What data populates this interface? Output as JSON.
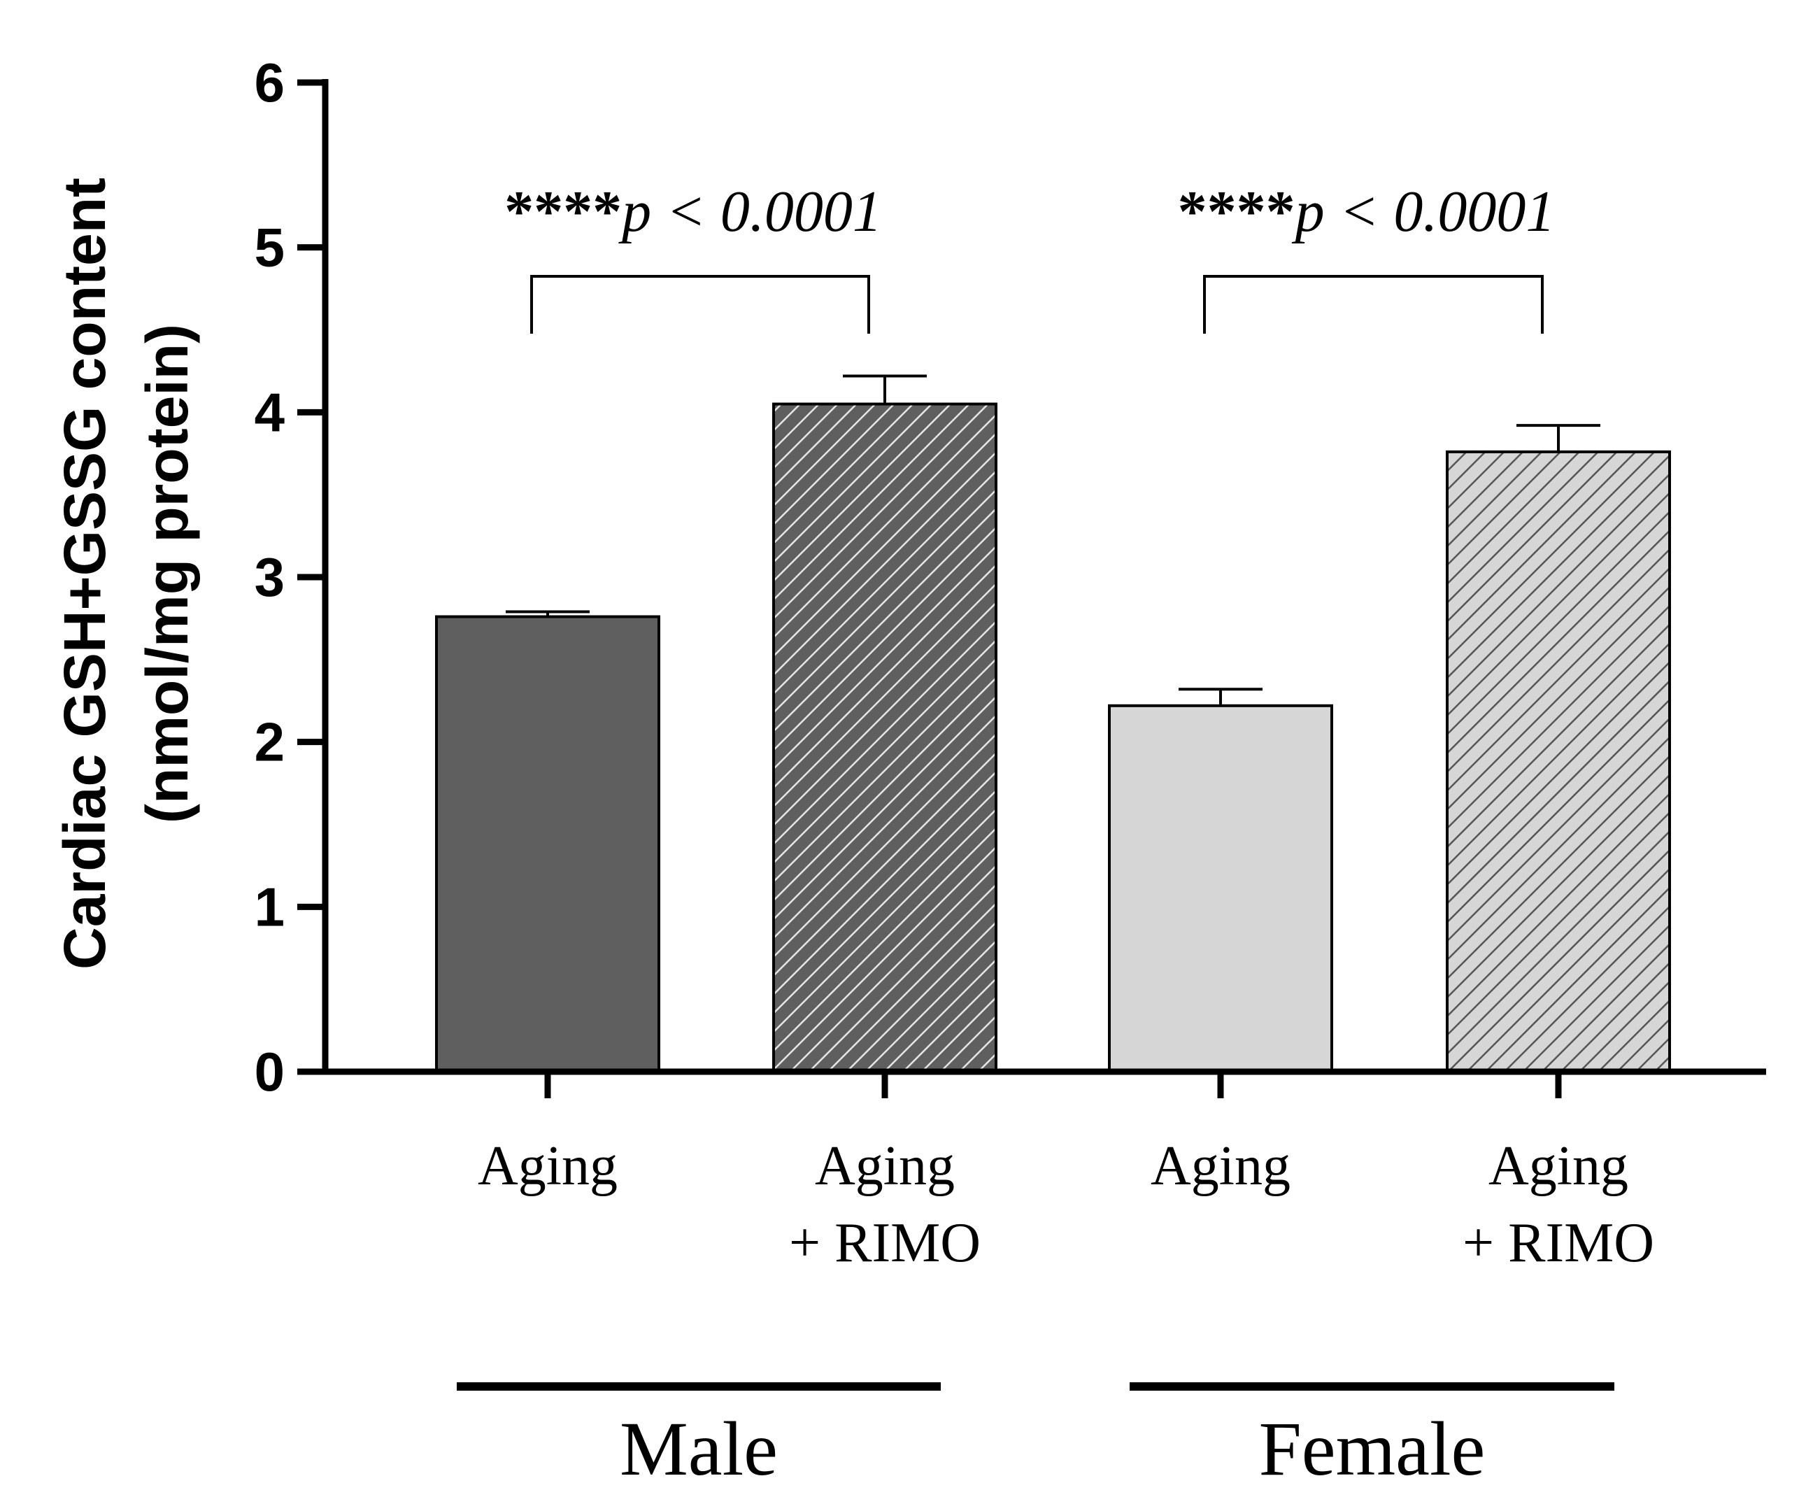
{
  "chart_data": {
    "type": "bar",
    "ylabel_line1": "Cardiac GSH+GSSG content",
    "ylabel_line2": "(nmol/mg protein)",
    "ylim": [
      0,
      6
    ],
    "yticks": [
      "0",
      "1",
      "2",
      "3",
      "4",
      "5",
      "6"
    ],
    "categories": [
      {
        "line1": "Aging",
        "line2": ""
      },
      {
        "line1": "Aging",
        "line2": "+ RIMO"
      },
      {
        "line1": "Aging",
        "line2": ""
      },
      {
        "line1": "Aging",
        "line2": "+ RIMO"
      }
    ],
    "values": [
      2.76,
      4.05,
      2.22,
      3.76
    ],
    "errors": [
      0.03,
      0.17,
      0.1,
      0.16
    ],
    "bar_styles": [
      {
        "fill": "#5f5f5f",
        "hatch": false,
        "hatch_color": ""
      },
      {
        "fill": "#5f5f5f",
        "hatch": true,
        "hatch_color": "#e6e6e6"
      },
      {
        "fill": "#d6d6d6",
        "hatch": false,
        "hatch_color": ""
      },
      {
        "fill": "#d6d6d6",
        "hatch": true,
        "hatch_color": "#555555"
      }
    ],
    "groups": [
      {
        "label": "Male",
        "bars": [
          0,
          1
        ]
      },
      {
        "label": "Female",
        "bars": [
          2,
          3
        ]
      }
    ],
    "comparisons": [
      {
        "from": 0,
        "to": 1,
        "stars": "****",
        "p_symbol": "p",
        "p_rest": " < 0.0001"
      },
      {
        "from": 2,
        "to": 3,
        "stars": "****",
        "p_symbol": "p",
        "p_rest": " < 0.0001"
      }
    ]
  }
}
